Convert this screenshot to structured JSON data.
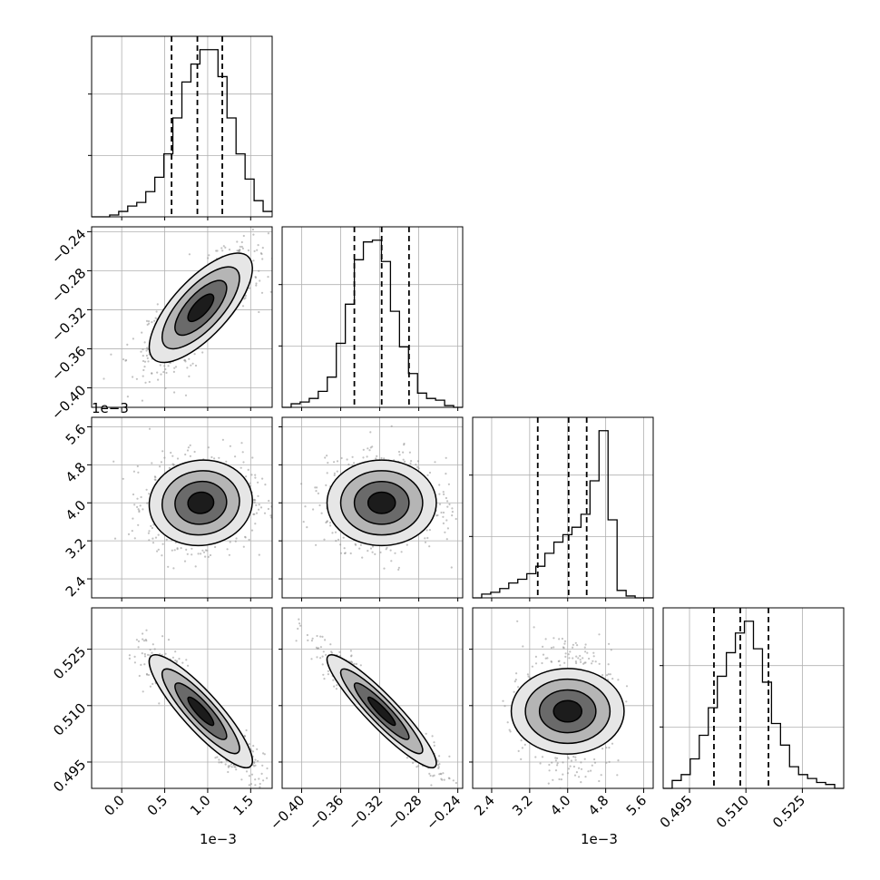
{
  "chart_data": {
    "type": "corner",
    "grid": true,
    "parameters": [
      {
        "range": [
          -0.35,
          1.75
        ],
        "ticks": [
          0.0,
          0.5,
          1.0,
          1.5
        ],
        "tick_labels": [
          "0.0",
          "0.5",
          "1.0",
          "1.5"
        ],
        "offset_label": "1e−3",
        "mean": 0.92,
        "sd": 0.3
      },
      {
        "range": [
          -0.42,
          -0.235
        ],
        "ticks": [
          -0.4,
          -0.36,
          -0.32,
          -0.28,
          -0.24
        ],
        "tick_labels": [
          "−0.40",
          "−0.36",
          "−0.32",
          "−0.28",
          "−0.24"
        ],
        "offset_label": "",
        "mean": -0.318,
        "sd": 0.028
      },
      {
        "range": [
          2.0,
          5.8
        ],
        "ticks": [
          2.4,
          3.2,
          4.0,
          4.8,
          5.6
        ],
        "tick_labels": [
          "2.4",
          "3.2",
          "4.0",
          "4.8",
          "5.6"
        ],
        "offset_label": "1e−3",
        "mean": 4.0,
        "sd": 0.45
      },
      {
        "range": [
          0.488,
          0.536
        ],
        "ticks": [
          0.495,
          0.51,
          0.525
        ],
        "tick_labels": [
          "0.495",
          "0.510",
          "0.525"
        ],
        "offset_label": "",
        "mean": 0.5085,
        "sd": 0.0075
      }
    ],
    "quantile_lines": [
      [
        0.58,
        0.88,
        1.17
      ],
      [
        -0.346,
        -0.318,
        -0.29
      ],
      [
        3.37,
        4.02,
        4.4
      ],
      [
        0.5015,
        0.5085,
        0.516
      ]
    ],
    "histograms": [
      {
        "edges_start": -0.35,
        "bin_width": 0.105,
        "counts": [
          0,
          0,
          1,
          3,
          6,
          8,
          14,
          22,
          35,
          55,
          75,
          85,
          93,
          93,
          78,
          55,
          35,
          21,
          9,
          3
        ]
      },
      {
        "edges_start": -0.42,
        "bin_width": 0.00925,
        "counts": [
          0,
          2,
          3,
          5,
          9,
          17,
          36,
          58,
          83,
          93,
          94,
          82,
          54,
          34,
          19,
          8,
          5,
          4,
          1,
          0
        ]
      },
      {
        "edges_start": 2.0,
        "bin_width": 0.19,
        "counts": [
          0,
          2,
          3,
          5,
          8,
          10,
          13,
          17,
          24,
          30,
          34,
          38,
          45,
          63,
          90,
          42,
          4,
          1,
          0,
          0
        ]
      },
      {
        "edges_start": 0.488,
        "bin_width": 0.0024,
        "counts": [
          0,
          4,
          7,
          15,
          27,
          41,
          57,
          69,
          79,
          85,
          71,
          54,
          33,
          22,
          11,
          7,
          5,
          3,
          2,
          0
        ]
      }
    ],
    "correlations": [
      {
        "pair": [
          0,
          1
        ],
        "rho": 0.72
      },
      {
        "pair": [
          0,
          2
        ],
        "rho": 0.05
      },
      {
        "pair": [
          1,
          2
        ],
        "rho": 0.0
      },
      {
        "pair": [
          0,
          3
        ],
        "rho": -0.88
      },
      {
        "pair": [
          1,
          3
        ],
        "rho": -0.92
      },
      {
        "pair": [
          2,
          3
        ],
        "rho": 0.0
      }
    ]
  },
  "colors": {
    "line": "#000000",
    "grid": "#b0b0b0",
    "scatter": "#8f8f8f"
  }
}
